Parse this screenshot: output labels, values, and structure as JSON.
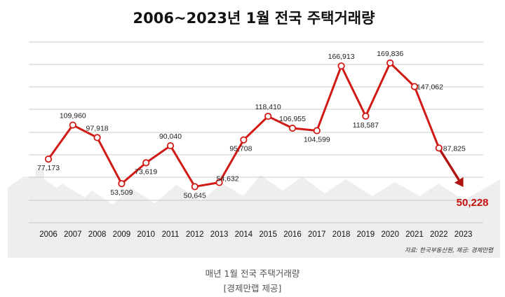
{
  "chart_data": {
    "type": "line",
    "title": "2006~2023년 1월 전국 주택거래량",
    "categories": [
      "2006",
      "2007",
      "2008",
      "2009",
      "2010",
      "2011",
      "2012",
      "2013",
      "2014",
      "2015",
      "2016",
      "2017",
      "2018",
      "2019",
      "2020",
      "2021",
      "2022",
      "2023"
    ],
    "series": [
      {
        "name": "주택거래량",
        "values": [
          77173,
          109960,
          97918,
          53509,
          73619,
          90040,
          50645,
          54632,
          95708,
          118410,
          106955,
          104599,
          166913,
          118587,
          169836,
          147062,
          87825,
          50228
        ],
        "labels": [
          "77,173",
          "109,960",
          "97,918",
          "53,509",
          "73,619",
          "90,040",
          "50,645",
          "54,632",
          "95,708",
          "118,410",
          "106,955",
          "104,599",
          "166,913",
          "118,587",
          "169,836",
          "147,062",
          "87,825",
          "50,228"
        ]
      }
    ],
    "xlabel": "",
    "ylabel": "",
    "ylim": [
      30000,
      190000
    ],
    "grid": true,
    "highlight_last": true,
    "source_note": "자료: 한국부동산원, 제공: 경제만랩",
    "colors": {
      "line": "#d11a16",
      "last_segment": "#b0120f",
      "last_label": "#c4120f",
      "grid": "#c9c9c9",
      "silhouette": "#eeeeee",
      "text": "#222222"
    }
  },
  "caption": {
    "line1": "매년 1월 전국 주택거래량",
    "line2": "[경제만랩 제공]"
  }
}
